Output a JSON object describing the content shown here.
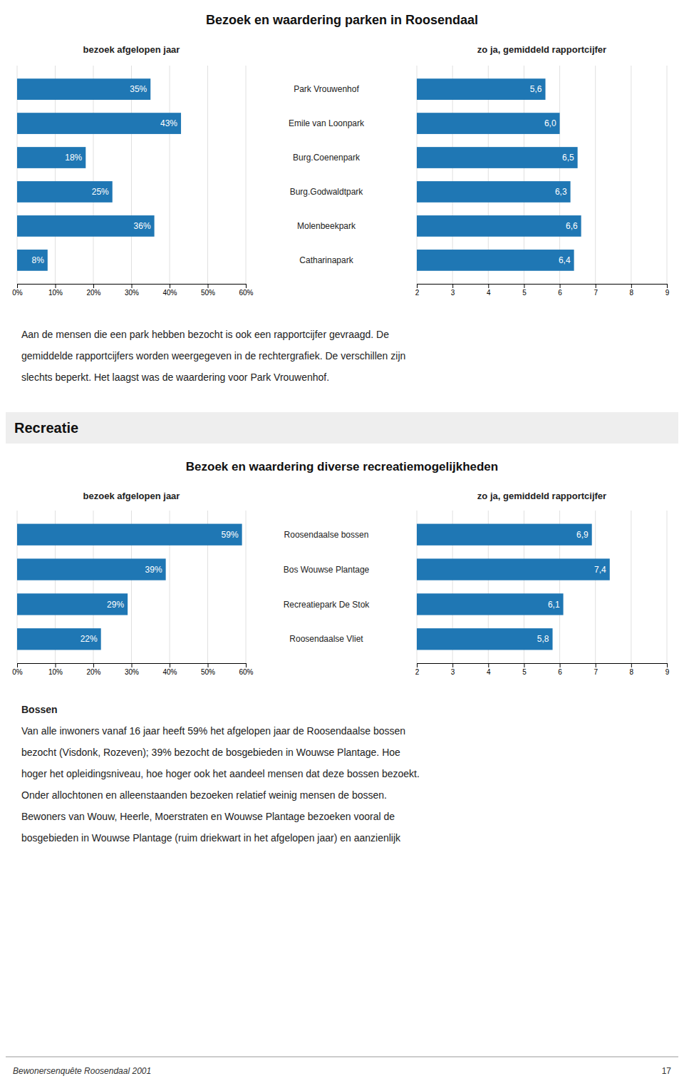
{
  "chart_data": [
    {
      "type": "bar",
      "orientation": "horizontal",
      "title": "Bezoek en waardering parken in Roosendaal",
      "subtitle": "bezoek afgelopen jaar",
      "categories": [
        "Park Vrouwenhof",
        "Emile van Loonpark",
        "Burg.Coenenpark",
        "Burg.Godwaldtpark",
        "Molenbeekpark",
        "Catharinapark"
      ],
      "values": [
        35,
        43,
        18,
        25,
        36,
        8
      ],
      "value_labels": [
        "35%",
        "43%",
        "18%",
        "25%",
        "36%",
        "8%"
      ],
      "data_labels": true,
      "xlim": [
        0,
        60
      ],
      "xticks": [
        {
          "value": 0,
          "label": "0%"
        },
        {
          "value": 10,
          "label": "10%"
        },
        {
          "value": 20,
          "label": "20%"
        },
        {
          "value": 30,
          "label": "30%"
        },
        {
          "value": 40,
          "label": "40%"
        },
        {
          "value": 50,
          "label": "50%"
        },
        {
          "value": 60,
          "label": "60%"
        }
      ],
      "grid": true,
      "annotations": [
        "Aan de mensen die een park hebben bezocht is ook een rapportcijfer gevraagd. De",
        "gemiddelde rapportcijfers worden weergegeven in de rechtergrafiek. De verschillen zijn",
        "slechts beperkt. Het laagst was de waardering voor Park Vrouwenhof."
      ]
    },
    {
      "type": "bar",
      "orientation": "horizontal",
      "subtitle": "zo ja, gemiddeld rapportcijfer",
      "values": [
        5.6,
        6.0,
        6.5,
        6.3,
        6.6,
        6.4
      ],
      "value_labels": [
        "5,6",
        "6,0",
        "6,5",
        "6,3",
        "6,6",
        "6,4"
      ],
      "data_labels": true,
      "xlim": [
        2,
        9
      ],
      "xticks": [
        2,
        3,
        4,
        5,
        6,
        7,
        8,
        9
      ],
      "grid": true,
      "annotations": [
        "Bewonersenquête Roosendaal 2001",
        "17"
      ]
    },
    {
      "type": "bar",
      "orientation": "horizontal",
      "title": "Bezoek en waardering diverse recreatiemogelijkheden",
      "subtitle": "bezoek afgelopen jaar",
      "categories": [
        "Roosendaalse bossen",
        "Bos Wouwse Plantage",
        "Recreatiepark De Stok",
        "Roosendaalse Vliet"
      ],
      "values": [
        59,
        39,
        29,
        22
      ],
      "value_labels": [
        "59%",
        "39%",
        "29%",
        "22%"
      ],
      "data_labels": true,
      "xlim": [
        0,
        60
      ],
      "xticks": [
        {
          "value": 0,
          "label": "0%"
        },
        {
          "value": 10,
          "label": "10%"
        },
        {
          "value": 20,
          "label": "20%"
        },
        {
          "value": 30,
          "label": "30%"
        },
        {
          "value": 40,
          "label": "40%"
        },
        {
          "value": 50,
          "label": "50%"
        },
        {
          "value": 60,
          "label": "60%"
        }
      ],
      "grid": true,
      "annotations": [
        "Recreatie"
      ]
    },
    {
      "type": "bar",
      "orientation": "horizontal",
      "subtitle": "zo ja, gemiddeld rapportcijfer",
      "values": [
        6.9,
        7.4,
        6.1,
        5.8
      ],
      "value_labels": [
        "6,9",
        "7,4",
        "6,1",
        "5,8"
      ],
      "data_labels": true,
      "xlim": [
        2,
        9
      ],
      "xticks": [
        2,
        3,
        4,
        5,
        6,
        7,
        8,
        9
      ],
      "grid": true,
      "annotations": [
        "Bossen",
        "Van alle inwoners vanaf 16 jaar heeft 59% het afgelopen jaar de Roosendaalse bossen",
        "bezocht (Visdonk, Rozeven); 39% bezocht de bosgebieden in Wouwse Plantage. Hoe",
        "hoger het opleidingsniveau, hoe hoger ook het aandeel mensen dat deze bossen bezoekt.",
        "Onder allochtonen en alleenstaanden bezoeken relatief weinig mensen de bossen.",
        "Bewoners van Wouw, Heerle, Moerstraten en Wouwse Plantage bezoeken vooral de",
        "bosgebieden in Wouwse Plantage (ruim driekwart in het afgelopen jaar) en aanzienlijk"
      ]
    }
  ]
}
